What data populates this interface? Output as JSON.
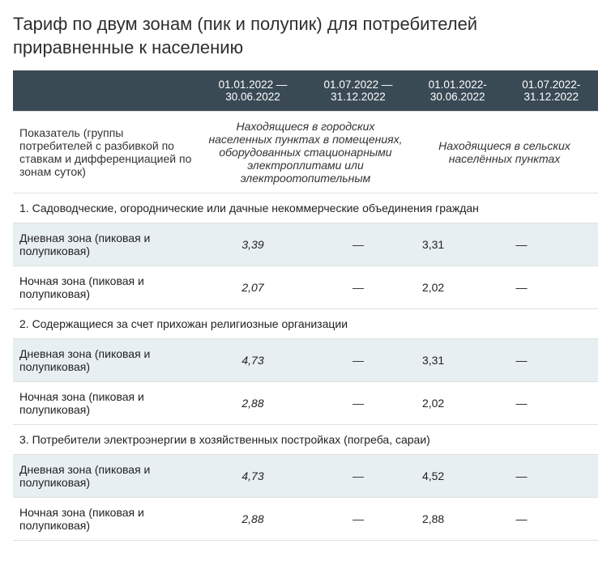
{
  "title": "Тариф по двум зонам (пик и полупик) для потребителей приравненные к населению",
  "colors": {
    "header_bg": "#3a4a55",
    "header_fg": "#ffffff",
    "stripe_bg": "#e8eff2",
    "border": "#e0e0e0",
    "text": "#222222"
  },
  "header": {
    "periods": {
      "p1": "01.01.2022 — 30.06.2022",
      "p2": "01.07.2022 — 31.12.2022",
      "p3": "01.01.2022-30.06.2022",
      "p4": "01.07.2022-31.12.2022"
    },
    "indicator": "Показатель (группы потребителей с разбивкой по ставкам и дифференциацией по зонам суток)",
    "group_a": "Находящиеся в городских населенных пунктах в помещениях, оборудованных  стационарными электроплитами или электроотопительным",
    "group_b": "Находящиеся в сельских населённых пунктах"
  },
  "sections": [
    {
      "title": "1. Садоводческие, огороднические или дачные некоммерческие объединения граждан",
      "rows": [
        {
          "label": "Дневная зона (пиковая и полупиковая)",
          "v1": "3,39",
          "v2": "—",
          "v3": "3,31",
          "v4": "—"
        },
        {
          "label": "Ночная зона (пиковая и полупиковая)",
          "v1": "2,07",
          "v2": "—",
          "v3": "2,02",
          "v4": "—"
        }
      ]
    },
    {
      "title": "2. Содержащиеся за счет прихожан религиозные организации",
      "rows": [
        {
          "label": "Дневная зона (пиковая и полупиковая)",
          "v1": "4,73",
          "v2": "—",
          "v3": "3,31",
          "v4": "—"
        },
        {
          "label": "Ночная зона (пиковая и полупиковая)",
          "v1": "2,88",
          "v2": "—",
          "v3": "2,02",
          "v4": "—"
        }
      ]
    },
    {
      "title": "3. Потребители электроэнергии в хозяйственных постройках (погреба, сараи)",
      "rows": [
        {
          "label": "Дневная зона (пиковая и полупиковая)",
          "v1": "4,73",
          "v2": "—",
          "v3": "4,52",
          "v4": "—"
        },
        {
          "label": "Ночная зона (пиковая и полупиковая)",
          "v1": "2,88",
          "v2": "—",
          "v3": "2,88",
          "v4": "—"
        }
      ]
    }
  ]
}
